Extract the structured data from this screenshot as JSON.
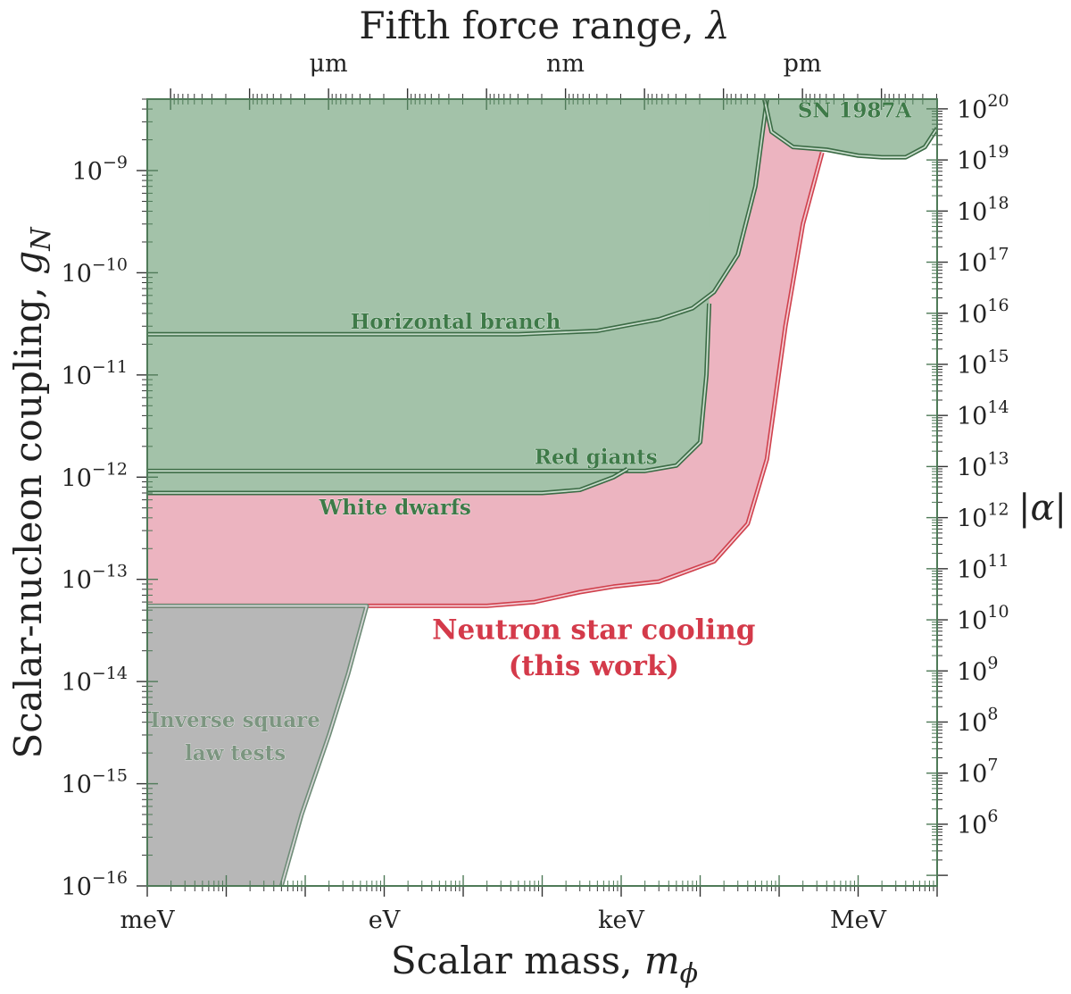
{
  "chart_data": {
    "type": "area",
    "title": "",
    "xlabel_bottom": "Scalar mass,",
    "xlabel_bottom_symbol": "m",
    "xlabel_bottom_sub": "ϕ",
    "xlabel_top": "Fifth force range,",
    "xlabel_top_symbol": "λ",
    "ylabel_left": "Scalar-nucleon coupling,",
    "ylabel_left_symbol": "g",
    "ylabel_left_sub": "N",
    "ylabel_right": "|α|",
    "x_scale": "log",
    "x_units": "eV",
    "xlim": [
      0.001,
      10000000
    ],
    "y_scale": "log",
    "ylim": [
      1e-16,
      5e-09
    ],
    "bottom_ticks": [
      {
        "label": "meV",
        "value": 0.001
      },
      {
        "label": "eV",
        "value": 1
      },
      {
        "label": "keV",
        "value": 1000
      },
      {
        "label": "MeV",
        "value": 1000000
      }
    ],
    "top_ticks": [
      {
        "label": "μm",
        "value": 0.197
      },
      {
        "label": "nm",
        "value": 197
      },
      {
        "label": "pm",
        "value": 197000
      }
    ],
    "left_ticks": [
      {
        "base": "10",
        "exp": "−9",
        "value": 1e-09
      },
      {
        "base": "10",
        "exp": "−10",
        "value": 1e-10
      },
      {
        "base": "10",
        "exp": "−11",
        "value": 1e-11
      },
      {
        "base": "10",
        "exp": "−12",
        "value": 1e-12
      },
      {
        "base": "10",
        "exp": "−13",
        "value": 1e-13
      },
      {
        "base": "10",
        "exp": "−14",
        "value": 1e-14
      },
      {
        "base": "10",
        "exp": "−15",
        "value": 1e-15
      },
      {
        "base": "10",
        "exp": "−16",
        "value": 1e-16
      }
    ],
    "right_ticks": [
      {
        "base": "10",
        "exp": "20",
        "value": 1e+20
      },
      {
        "base": "10",
        "exp": "19",
        "value": 1e+19
      },
      {
        "base": "10",
        "exp": "18",
        "value": 1e+18
      },
      {
        "base": "10",
        "exp": "17",
        "value": 1e+17
      },
      {
        "base": "10",
        "exp": "16",
        "value": 1e+16
      },
      {
        "base": "10",
        "exp": "15",
        "value": 1000000000000000.0
      },
      {
        "base": "10",
        "exp": "14",
        "value": 100000000000000.0
      },
      {
        "base": "10",
        "exp": "13",
        "value": 10000000000000.0
      },
      {
        "base": "10",
        "exp": "12",
        "value": 1000000000000.0
      },
      {
        "base": "10",
        "exp": "11",
        "value": 100000000000.0
      },
      {
        "base": "10",
        "exp": "10",
        "value": 10000000000.0
      },
      {
        "base": "10",
        "exp": "9",
        "value": 1000000000.0
      },
      {
        "base": "10",
        "exp": "8",
        "value": 100000000.0
      },
      {
        "base": "10",
        "exp": "7",
        "value": 10000000.0
      },
      {
        "base": "10",
        "exp": "6",
        "value": 1000000.0
      }
    ],
    "alpha_conversion": {
      "g_ref": 1e-09,
      "alpha_ref": 6.2e+18
    },
    "colors": {
      "green_fill": "#a3c2a9",
      "green_line": "#3b6b45",
      "pink_fill": "#ecb4c0",
      "red_line": "#d0414d",
      "grey_fill": "#b7b7b7",
      "grey_line": "#6f8c78",
      "label_green": "#3e7a48",
      "label_red": "#d43a4a",
      "label_grey": "#7c9580"
    },
    "series": [
      {
        "name": "Horizontal branch",
        "kind": "excluded_above",
        "color": "green",
        "points": [
          [
            0.001,
            2.5e-11
          ],
          [
            50,
            2.5e-11
          ],
          [
            500,
            2.7e-11
          ],
          [
            3000,
            3.5e-11
          ],
          [
            8000,
            4.5e-11
          ],
          [
            15000,
            6.5e-11
          ],
          [
            30000,
            1.5e-10
          ],
          [
            50000,
            7e-10
          ],
          [
            70000,
            5e-09
          ]
        ]
      },
      {
        "name": "Red giants",
        "kind": "excluded_above",
        "color": "green",
        "points": [
          [
            0.001,
            1.15e-12
          ],
          [
            500,
            1.15e-12
          ],
          [
            2000,
            1.15e-12
          ],
          [
            5000,
            1.3e-12
          ],
          [
            10000,
            2.2e-12
          ],
          [
            12000,
            1e-11
          ],
          [
            13000,
            5e-11
          ]
        ]
      },
      {
        "name": "White dwarfs",
        "kind": "excluded_above",
        "color": "green",
        "points": [
          [
            0.001,
            7e-13
          ],
          [
            100,
            7e-13
          ],
          [
            300,
            7.5e-13
          ],
          [
            800,
            1e-12
          ],
          [
            1200,
            1.2e-12
          ]
        ]
      },
      {
        "name": "SN 1987A",
        "kind": "excluded_below",
        "color": "green",
        "points": [
          [
            65000,
            5e-09
          ],
          [
            80000,
            2.4e-09
          ],
          [
            150000,
            1.7e-09
          ],
          [
            400000,
            1.6e-09
          ],
          [
            1000000,
            1.4e-09
          ],
          [
            2000000,
            1.35e-09
          ],
          [
            4000000,
            1.35e-09
          ],
          [
            7000000,
            1.7e-09
          ],
          [
            10000000,
            2.6e-09
          ]
        ]
      },
      {
        "name": "Neutron star cooling (this work)",
        "kind": "excluded_above",
        "color": "red",
        "points": [
          [
            0.001,
            5.5e-14
          ],
          [
            20,
            5.5e-14
          ],
          [
            80,
            6e-14
          ],
          [
            200,
            7e-14
          ],
          [
            300,
            7.5e-14
          ],
          [
            800,
            8.5e-14
          ],
          [
            3000,
            9.5e-14
          ],
          [
            15000,
            1.5e-13
          ],
          [
            40000,
            3.5e-13
          ],
          [
            70000,
            1.5e-12
          ],
          [
            120000,
            3e-11
          ],
          [
            200000,
            3e-10
          ],
          [
            350000,
            1.5e-09
          ]
        ]
      },
      {
        "name": "Inverse square law tests",
        "kind": "excluded_left",
        "color": "grey",
        "points": [
          [
            0.001,
            5.5e-14
          ],
          [
            0.1,
            5.5e-14
          ],
          [
            0.6,
            5.5e-14
          ],
          [
            0.35,
            1.2e-14
          ],
          [
            0.2,
            3e-15
          ],
          [
            0.09,
            5e-16
          ],
          [
            0.05,
            1e-16
          ]
        ]
      }
    ],
    "annotations": [
      {
        "id": "hb",
        "text": "Horizontal branch",
        "x": 8,
        "y": 2.85e-11,
        "color": "label_green"
      },
      {
        "id": "rg",
        "text": "Red giants",
        "x": 480,
        "y": 1.35e-12,
        "color": "label_green"
      },
      {
        "id": "wd",
        "text": "White dwarfs",
        "x": 0.15,
        "y": 4.3e-13,
        "color": "label_green"
      },
      {
        "id": "sn",
        "text": "SN 1987A",
        "x": 900000,
        "y": 3.3e-09,
        "color": "label_green"
      },
      {
        "id": "ns1",
        "text": "Neutron star cooling",
        "x": 450,
        "y": 2.6e-14,
        "color": "label_red"
      },
      {
        "id": "ns2",
        "text": "(this work)",
        "x": 450,
        "y": 1.15e-14,
        "color": "label_red"
      },
      {
        "id": "isl1",
        "text": "Inverse square",
        "x": 0.013,
        "y": 3.6e-15,
        "color": "label_grey"
      },
      {
        "id": "isl2",
        "text": "law tests",
        "x": 0.013,
        "y": 1.7e-15,
        "color": "label_grey"
      }
    ]
  }
}
